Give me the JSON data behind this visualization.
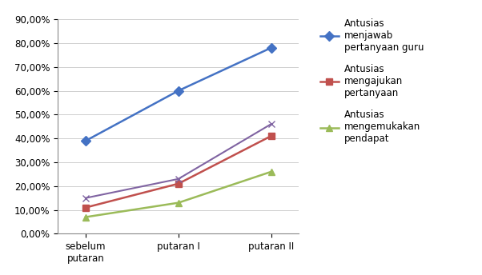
{
  "categories": [
    "sebelum\nputaran",
    "putaran I",
    "putaran II"
  ],
  "series": [
    {
      "label": "Antusias\nmenjawab\npertanyaan guru",
      "values": [
        0.39,
        0.6,
        0.78
      ],
      "color": "#4472C4",
      "marker": "D",
      "markersize": 6,
      "linewidth": 1.8,
      "in_legend": true
    },
    {
      "label": "Antusias\nmengajukan\npertanyaan",
      "values": [
        0.11,
        0.21,
        0.41
      ],
      "color": "#C0504D",
      "marker": "s",
      "markersize": 6,
      "linewidth": 1.8,
      "in_legend": true
    },
    {
      "label": "Antusias\nmengemukakan\npendapat",
      "values": [
        0.07,
        0.13,
        0.26
      ],
      "color": "#9BBB59",
      "marker": "^",
      "markersize": 6,
      "linewidth": 1.8,
      "in_legend": true
    },
    {
      "label": "",
      "values": [
        0.15,
        0.23,
        0.46
      ],
      "color": "#8064A2",
      "marker": "x",
      "markersize": 6,
      "linewidth": 1.5,
      "in_legend": false
    }
  ],
  "ylim": [
    0.0,
    0.9
  ],
  "yticks": [
    0.0,
    0.1,
    0.2,
    0.3,
    0.4,
    0.5,
    0.6,
    0.7,
    0.8,
    0.9
  ],
  "background_color": "#FFFFFF",
  "grid_color": "#BBBBBB",
  "figwidth": 6.02,
  "figheight": 3.44,
  "dpi": 100
}
